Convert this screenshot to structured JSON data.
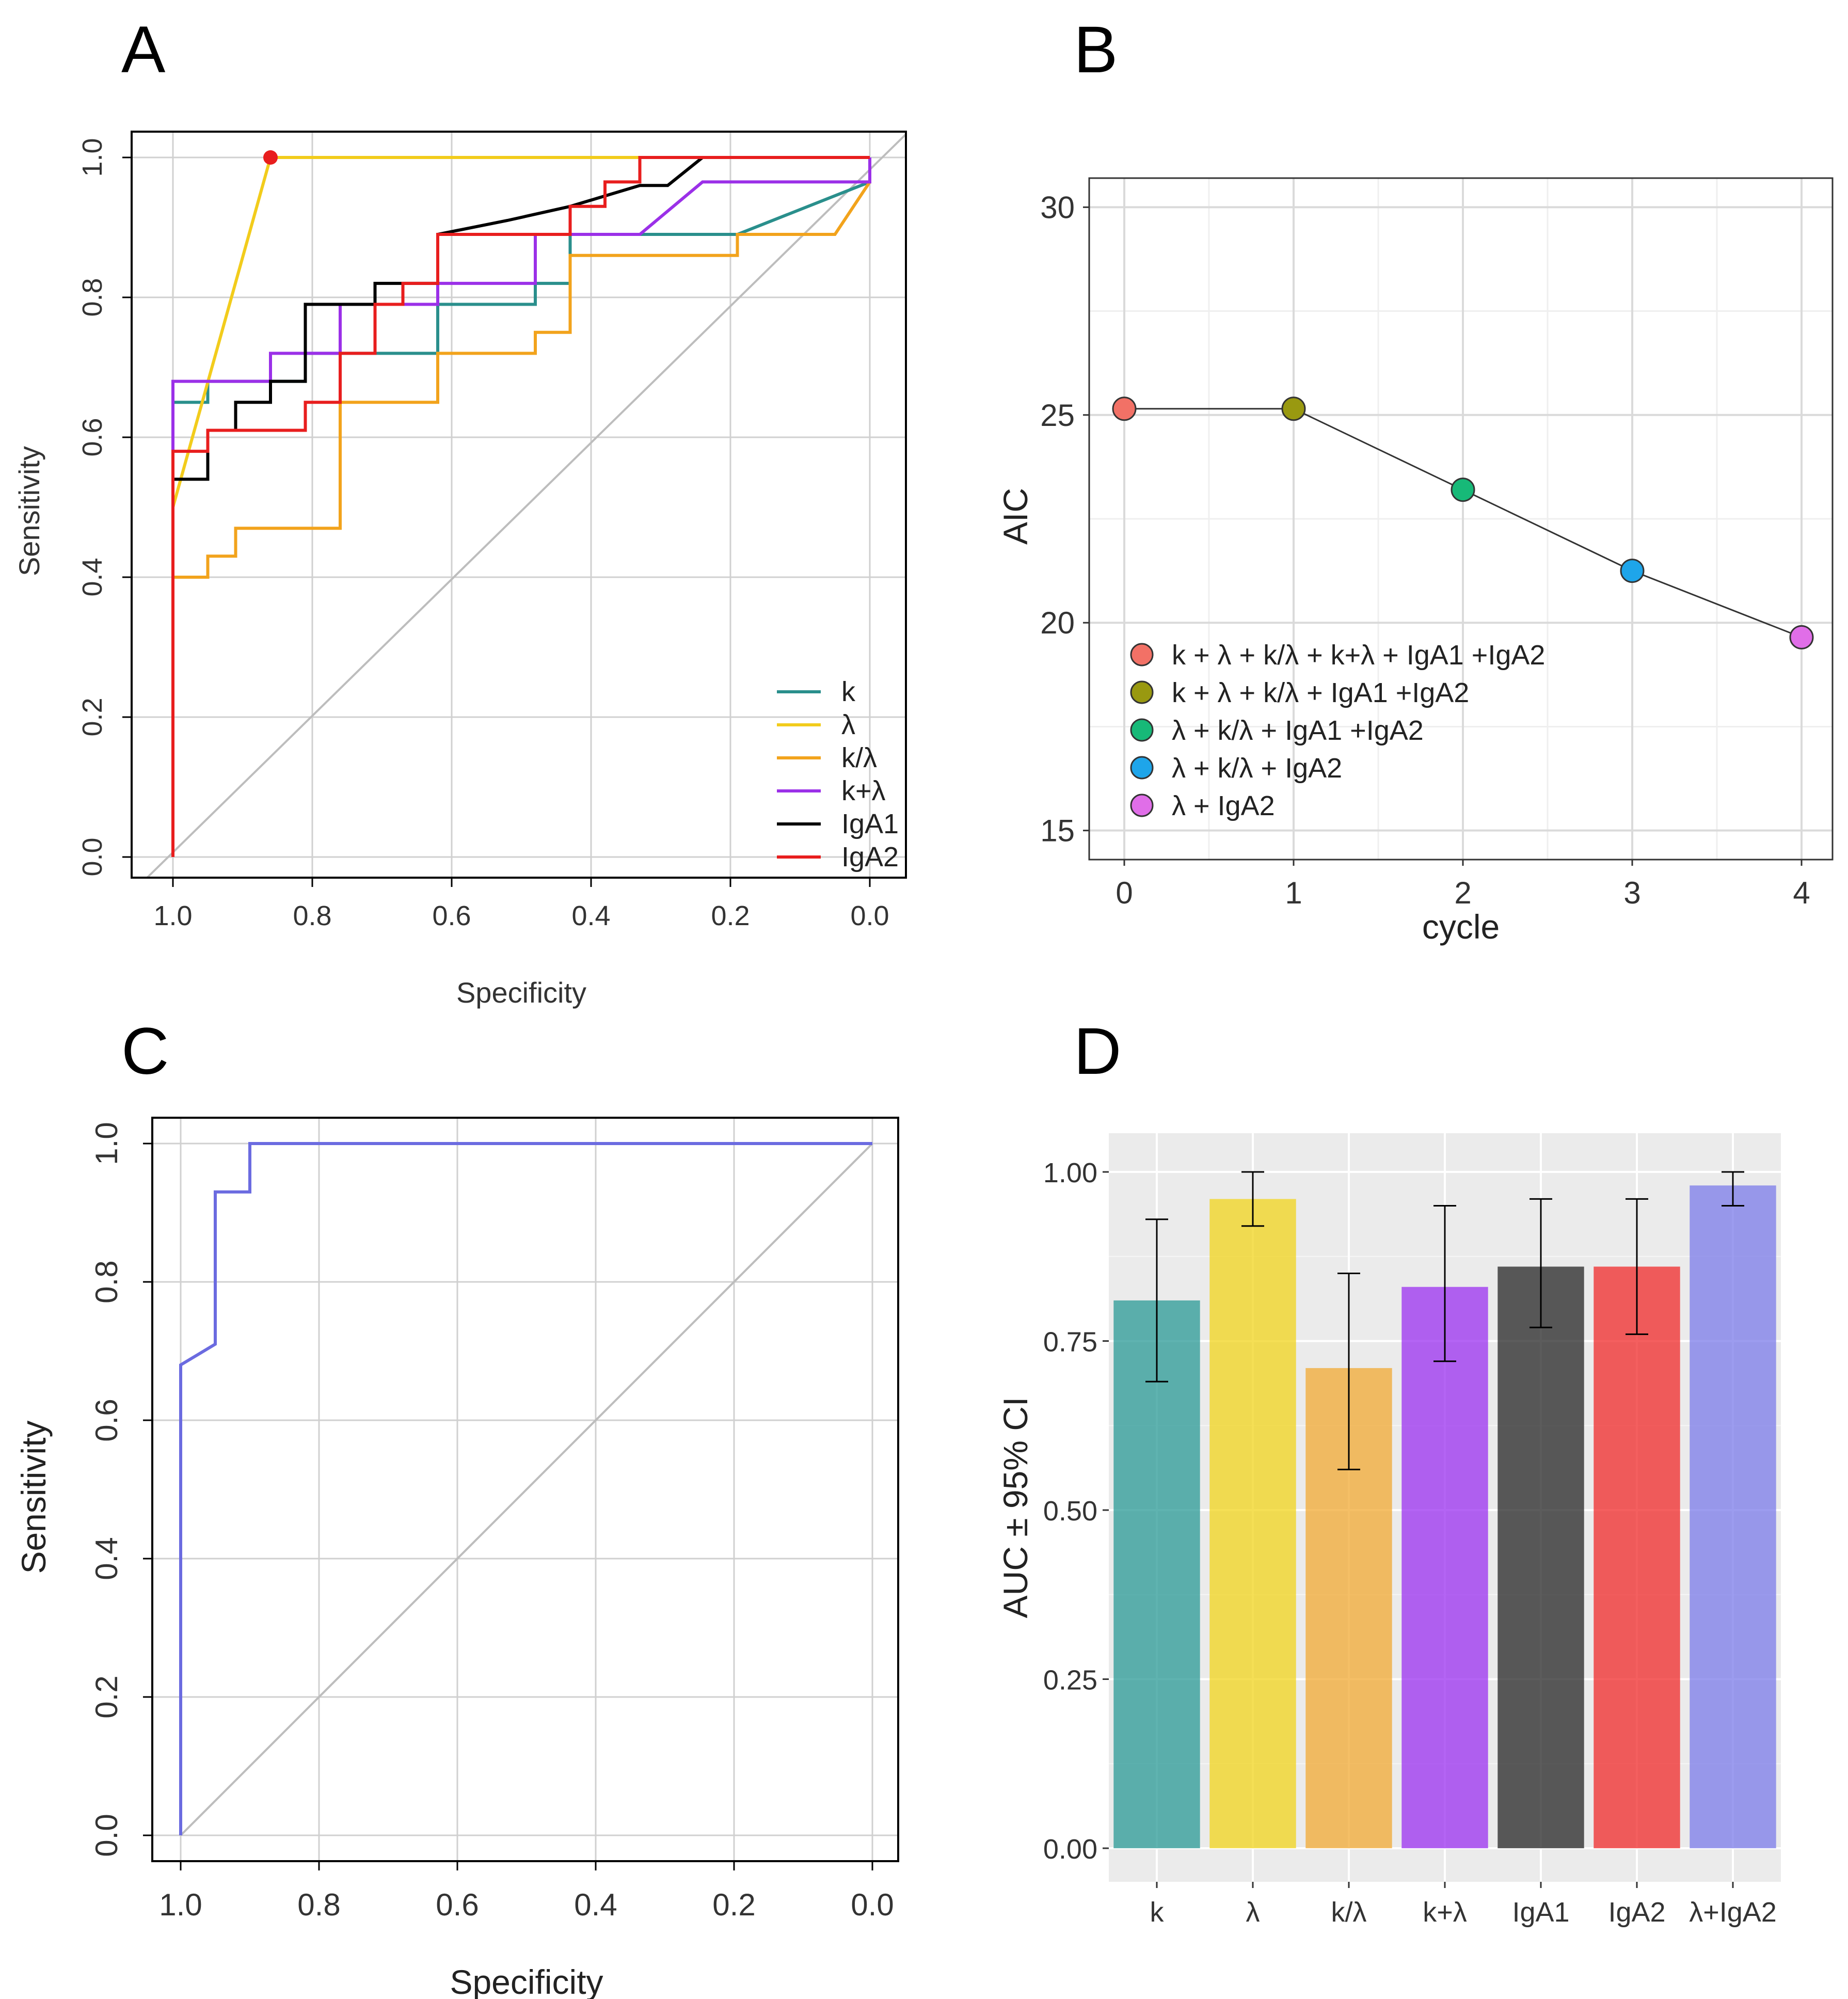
{
  "panels": {
    "A": "A",
    "B": "B",
    "C": "C",
    "D": "D"
  },
  "colors": {
    "k": "#2a8f8c",
    "lambda": "#f2cc1c",
    "k_lambda": "#f2a31c",
    "k_plus_lambda": "#9b30e8",
    "IgA1": "#000000",
    "IgA2": "#e81e1e",
    "combined": "#6b6be0",
    "diagonal": "#bdbdbd"
  },
  "chart_data": [
    {
      "id": "A",
      "type": "line",
      "title": "",
      "xlabel": "Specificity",
      "ylabel": "Sensitivity",
      "xlim": [
        1.0,
        0.0
      ],
      "ylim": [
        0.0,
        1.0
      ],
      "x_ticks": [
        "1.0",
        "0.8",
        "0.6",
        "0.4",
        "0.2",
        "0.0"
      ],
      "y_ticks": [
        "0.0",
        "0.2",
        "0.4",
        "0.6",
        "0.8",
        "1.0"
      ],
      "highlight_point": {
        "series": "λ",
        "x": 0.86,
        "y": 1.0
      },
      "series": [
        {
          "name": "k",
          "color_key": "k",
          "points": [
            [
              1.0,
              0.0
            ],
            [
              1.0,
              0.65
            ],
            [
              0.95,
              0.65
            ],
            [
              0.95,
              0.68
            ],
            [
              0.81,
              0.68
            ],
            [
              0.81,
              0.72
            ],
            [
              0.62,
              0.72
            ],
            [
              0.62,
              0.79
            ],
            [
              0.48,
              0.79
            ],
            [
              0.48,
              0.82
            ],
            [
              0.43,
              0.82
            ],
            [
              0.43,
              0.89
            ],
            [
              0.29,
              0.89
            ],
            [
              0.19,
              0.89
            ],
            [
              0.0,
              0.965
            ]
          ]
        },
        {
          "name": "λ",
          "color_key": "lambda",
          "points": [
            [
              1.0,
              0.5
            ],
            [
              0.86,
              1.0
            ],
            [
              0.38,
              1.0
            ],
            [
              0.0,
              1.0
            ]
          ]
        },
        {
          "name": "k/λ",
          "color_key": "k_lambda",
          "points": [
            [
              1.0,
              0.0
            ],
            [
              1.0,
              0.4
            ],
            [
              0.95,
              0.4
            ],
            [
              0.95,
              0.43
            ],
            [
              0.91,
              0.43
            ],
            [
              0.91,
              0.47
            ],
            [
              0.76,
              0.47
            ],
            [
              0.76,
              0.65
            ],
            [
              0.62,
              0.65
            ],
            [
              0.62,
              0.72
            ],
            [
              0.48,
              0.72
            ],
            [
              0.48,
              0.75
            ],
            [
              0.43,
              0.75
            ],
            [
              0.43,
              0.86
            ],
            [
              0.19,
              0.86
            ],
            [
              0.19,
              0.89
            ],
            [
              0.05,
              0.89
            ],
            [
              0.0,
              0.965
            ]
          ]
        },
        {
          "name": "k+λ",
          "color_key": "k_plus_lambda",
          "points": [
            [
              1.0,
              0.0
            ],
            [
              1.0,
              0.68
            ],
            [
              0.86,
              0.68
            ],
            [
              0.86,
              0.72
            ],
            [
              0.76,
              0.72
            ],
            [
              0.76,
              0.79
            ],
            [
              0.62,
              0.79
            ],
            [
              0.62,
              0.82
            ],
            [
              0.48,
              0.82
            ],
            [
              0.48,
              0.89
            ],
            [
              0.33,
              0.89
            ],
            [
              0.24,
              0.965
            ],
            [
              0.0,
              0.965
            ],
            [
              0.0,
              1.0
            ]
          ]
        },
        {
          "name": "IgA1",
          "color_key": "IgA1",
          "points": [
            [
              1.0,
              0.0
            ],
            [
              1.0,
              0.54
            ],
            [
              0.95,
              0.54
            ],
            [
              0.95,
              0.61
            ],
            [
              0.91,
              0.61
            ],
            [
              0.91,
              0.65
            ],
            [
              0.86,
              0.65
            ],
            [
              0.86,
              0.68
            ],
            [
              0.81,
              0.68
            ],
            [
              0.81,
              0.79
            ],
            [
              0.71,
              0.79
            ],
            [
              0.71,
              0.82
            ],
            [
              0.62,
              0.82
            ],
            [
              0.62,
              0.89
            ],
            [
              0.52,
              0.91
            ],
            [
              0.43,
              0.93
            ],
            [
              0.33,
              0.96
            ],
            [
              0.29,
              0.96
            ],
            [
              0.24,
              1.0
            ],
            [
              0.0,
              1.0
            ]
          ]
        },
        {
          "name": "IgA2",
          "color_key": "IgA2",
          "points": [
            [
              1.0,
              0.0
            ],
            [
              1.0,
              0.58
            ],
            [
              0.95,
              0.58
            ],
            [
              0.95,
              0.61
            ],
            [
              0.81,
              0.61
            ],
            [
              0.81,
              0.65
            ],
            [
              0.76,
              0.65
            ],
            [
              0.76,
              0.72
            ],
            [
              0.71,
              0.72
            ],
            [
              0.71,
              0.79
            ],
            [
              0.67,
              0.79
            ],
            [
              0.67,
              0.82
            ],
            [
              0.62,
              0.82
            ],
            [
              0.62,
              0.89
            ],
            [
              0.43,
              0.89
            ],
            [
              0.43,
              0.93
            ],
            [
              0.38,
              0.93
            ],
            [
              0.38,
              0.965
            ],
            [
              0.33,
              0.965
            ],
            [
              0.33,
              1.0
            ],
            [
              0.0,
              1.0
            ]
          ]
        }
      ]
    },
    {
      "id": "B",
      "type": "line",
      "title": "",
      "xlabel": "cycle",
      "ylabel": "AIC",
      "xlim": [
        -0.1,
        4.2
      ],
      "ylim": [
        14.3,
        30.7
      ],
      "x_ticks": [
        "0",
        "1",
        "2",
        "3",
        "4"
      ],
      "y_ticks": [
        "15",
        "20",
        "25",
        "30"
      ],
      "x": [
        0,
        1,
        2,
        3,
        4
      ],
      "values": [
        25.15,
        25.15,
        23.2,
        21.25,
        19.65
      ],
      "point_colors": [
        "#f27166",
        "#999910",
        "#17b978",
        "#1ea5ea",
        "#e06ee8"
      ],
      "legend": [
        "k + λ + k/λ + k+λ + IgA1 +IgA2",
        "k + λ + k/λ + IgA1 +IgA2",
        "λ + k/λ + IgA1 +IgA2",
        "λ + k/λ + IgA2",
        "λ + IgA2"
      ]
    },
    {
      "id": "C",
      "type": "line",
      "title": "",
      "xlabel": "Specificity",
      "ylabel": "Sensitivity",
      "xlim": [
        1.0,
        0.0
      ],
      "ylim": [
        0.0,
        1.0
      ],
      "x_ticks": [
        "1.0",
        "0.8",
        "0.6",
        "0.4",
        "0.2",
        "0.0"
      ],
      "y_ticks": [
        "0.0",
        "0.2",
        "0.4",
        "0.6",
        "0.8",
        "1.0"
      ],
      "series": [
        {
          "name": "λ+IgA2",
          "color_key": "combined",
          "points": [
            [
              1.0,
              0.0
            ],
            [
              1.0,
              0.68
            ],
            [
              0.95,
              0.71
            ],
            [
              0.95,
              0.93
            ],
            [
              0.9,
              0.93
            ],
            [
              0.9,
              1.0
            ],
            [
              0.0,
              1.0
            ]
          ]
        }
      ]
    },
    {
      "id": "D",
      "type": "bar",
      "title": "",
      "xlabel": "",
      "ylabel": "AUC ± 95% CI",
      "ylim": [
        0.0,
        1.0
      ],
      "y_ticks": [
        "0.00",
        "0.25",
        "0.50",
        "0.75",
        "1.00"
      ],
      "categories": [
        "k",
        "λ",
        "k/λ",
        "k+λ",
        "IgA1",
        "IgA2",
        "λ+IgA2"
      ],
      "values": [
        0.81,
        0.96,
        0.71,
        0.83,
        0.86,
        0.86,
        0.98
      ],
      "ci_low": [
        0.69,
        0.92,
        0.56,
        0.72,
        0.77,
        0.76,
        0.95
      ],
      "ci_high": [
        0.93,
        1.0,
        0.85,
        0.95,
        0.96,
        0.96,
        1.0
      ],
      "bar_colors": [
        "#2a9a95",
        "#f2d41c",
        "#f2aa33",
        "#9b30f0",
        "#262626",
        "#f02a2a",
        "#7b7bea"
      ]
    }
  ]
}
